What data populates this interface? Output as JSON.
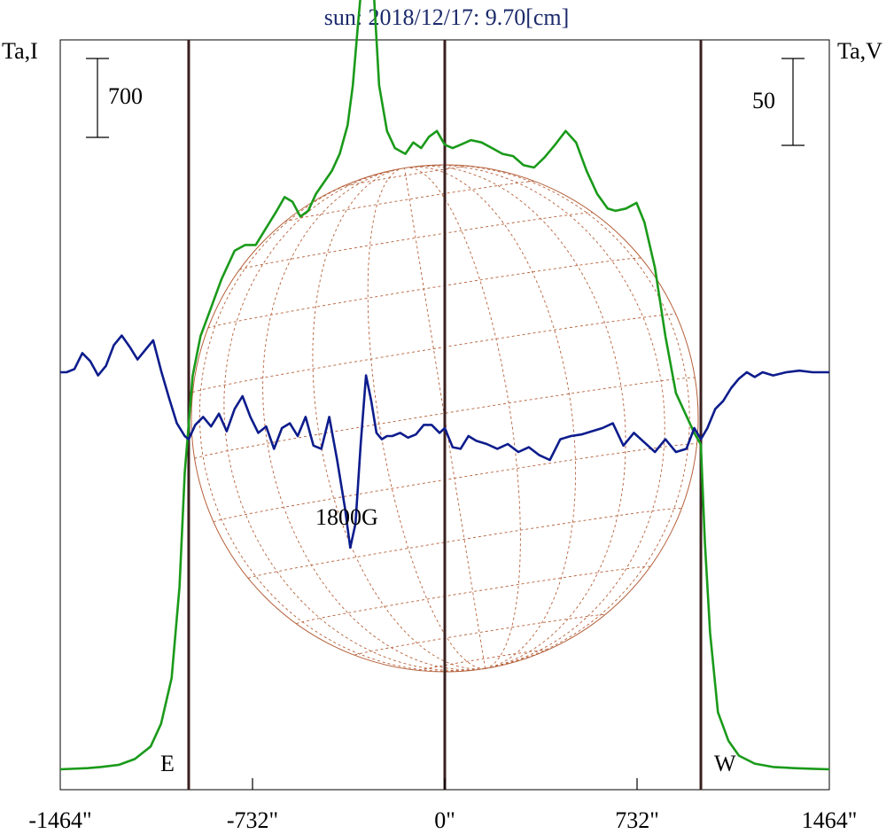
{
  "chart_data": {
    "type": "line",
    "title": "sun: 2018/12/17: 9.70[cm]",
    "left_axis_label": "Ta,I",
    "right_axis_label": "Ta,V",
    "x_ticks": [
      {
        "value": -1464,
        "label": "-1464\""
      },
      {
        "value": -732,
        "label": "-732\""
      },
      {
        "value": 0,
        "label": "0\""
      },
      {
        "value": 732,
        "label": "732\""
      },
      {
        "value": 1464,
        "label": "1464\""
      }
    ],
    "xlim": [
      -1464,
      1464
    ],
    "limb_lines": [
      -975,
      0,
      975
    ],
    "limb_labels": {
      "east": "E",
      "west": "W"
    },
    "scale_bar_left": {
      "label": "700",
      "value": 700
    },
    "scale_bar_right": {
      "label": "50",
      "value": 50
    },
    "annotation": {
      "text": "1800G",
      "x": -350
    },
    "colors": {
      "intensity": "#1a9a1a",
      "polarization": "#0d1c8c",
      "title": "#1b2a6b",
      "disk": "#b5603a",
      "limb_line": "#3a1f1f",
      "text": "#000000"
    },
    "series": [
      {
        "key": "intensity",
        "x": [
          -1464,
          -1360,
          -1310,
          -1240,
          -1180,
          -1120,
          -1080,
          -1040,
          -1010,
          -990,
          -975,
          -960,
          -930,
          -890,
          -850,
          -800,
          -760,
          -720,
          -680,
          -640,
          -610,
          -580,
          -550,
          -520,
          -490,
          -460,
          -430,
          -400,
          -370,
          -350,
          -330,
          -310,
          -290,
          -270,
          -250,
          -220,
          -190,
          -150,
          -120,
          -90,
          -60,
          -30,
          0,
          30,
          60,
          100,
          140,
          180,
          220,
          260,
          300,
          340,
          380,
          420,
          460,
          500,
          540,
          580,
          620,
          650,
          690,
          730,
          760,
          800,
          840,
          880,
          920,
          950,
          975,
          990,
          1010,
          1040,
          1080,
          1120,
          1180,
          1250,
          1330,
          1400,
          1464
        ],
        "y": [
          0,
          10,
          20,
          40,
          90,
          200,
          400,
          800,
          1600,
          2600,
          3030,
          3450,
          3800,
          4050,
          4300,
          4550,
          4600,
          4600,
          4750,
          4900,
          5020,
          4980,
          4850,
          4900,
          5050,
          5150,
          5250,
          5400,
          5650,
          6000,
          6550,
          7050,
          7250,
          6800,
          6000,
          5600,
          5450,
          5400,
          5500,
          5450,
          5550,
          5600,
          5480,
          5450,
          5480,
          5520,
          5500,
          5450,
          5400,
          5380,
          5300,
          5280,
          5370,
          5480,
          5600,
          5500,
          5250,
          5050,
          4920,
          4900,
          4920,
          4970,
          4800,
          4400,
          3800,
          3300,
          3100,
          2950,
          2850,
          2000,
          1200,
          500,
          250,
          120,
          50,
          20,
          10,
          5,
          0
        ]
      },
      {
        "key": "polarization",
        "x": [
          -1464,
          -1440,
          -1410,
          -1380,
          -1350,
          -1320,
          -1290,
          -1260,
          -1230,
          -1200,
          -1170,
          -1140,
          -1110,
          -1080,
          -1050,
          -1020,
          -990,
          -975,
          -950,
          -920,
          -890,
          -860,
          -830,
          -800,
          -770,
          -740,
          -710,
          -680,
          -650,
          -620,
          -590,
          -560,
          -530,
          -500,
          -470,
          -440,
          -410,
          -380,
          -360,
          -340,
          -320,
          -300,
          -280,
          -260,
          -240,
          -220,
          -200,
          -170,
          -140,
          -110,
          -80,
          -50,
          -20,
          0,
          30,
          60,
          90,
          120,
          160,
          200,
          240,
          280,
          320,
          360,
          400,
          440,
          480,
          520,
          560,
          600,
          640,
          680,
          720,
          760,
          800,
          840,
          880,
          920,
          950,
          975,
          1000,
          1030,
          1060,
          1090,
          1120,
          1150,
          1180,
          1210,
          1250,
          1300,
          1350,
          1400,
          1440,
          1464
        ],
        "y": [
          30,
          30,
          32,
          42,
          37,
          28,
          34,
          47,
          53,
          46,
          38,
          44,
          50,
          31,
          14,
          -2,
          -10,
          -12,
          -3,
          2,
          -4,
          4,
          -7,
          7,
          15,
          2,
          -8,
          -4,
          -18,
          -5,
          -2,
          -10,
          2,
          -16,
          -18,
          2,
          -25,
          -55,
          -80,
          -65,
          -15,
          28,
          12,
          -8,
          -12,
          -10,
          -10,
          -8,
          -11,
          -9,
          -3,
          -3,
          -8,
          -5,
          -17,
          -18,
          -10,
          -13,
          -15,
          -18,
          -15,
          -20,
          -17,
          -22,
          -25,
          -12,
          -10,
          -9,
          -7,
          -5,
          -2,
          -16,
          -8,
          -14,
          -20,
          -12,
          -20,
          -18,
          -5,
          -12,
          -5,
          7,
          12,
          20,
          26,
          30,
          27,
          30,
          28,
          30,
          31,
          30,
          30,
          30
        ],
        "y_pixels_per_unit": 1.8
      }
    ],
    "intensity_pixels_per_unit": 0.1286
  }
}
